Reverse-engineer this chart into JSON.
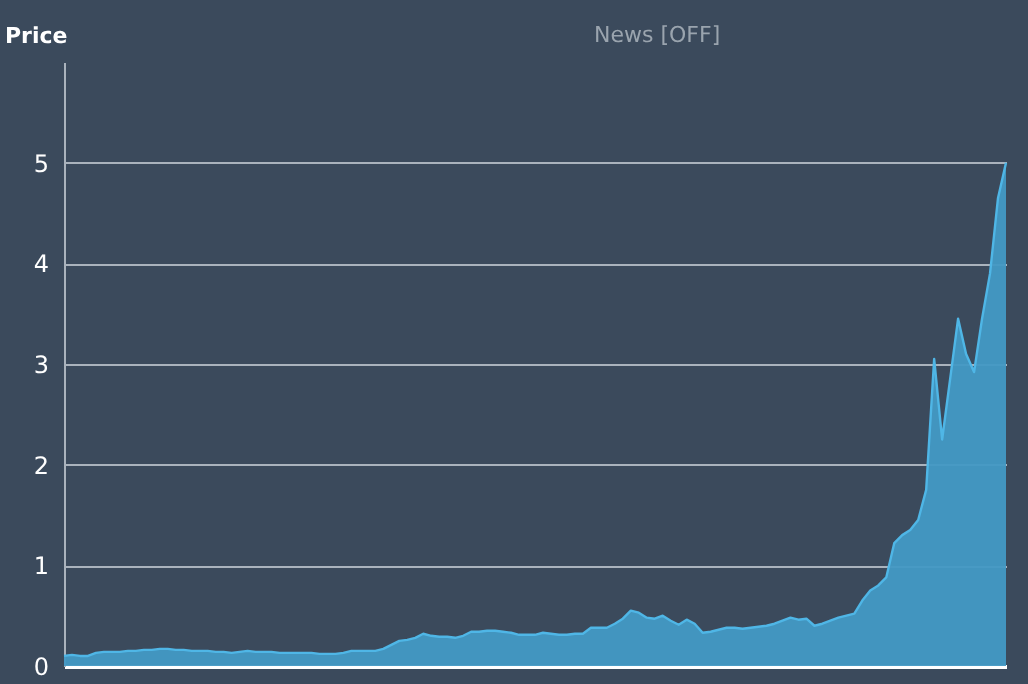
{
  "chart_data": {
    "type": "area",
    "ylabel": "Price",
    "annotations": [
      "News [OFF]"
    ],
    "categories": [
      null,
      null,
      null,
      null,
      null,
      null,
      null,
      null,
      null,
      null,
      null,
      null,
      null,
      null,
      null,
      null,
      null,
      null,
      null,
      null,
      null,
      null,
      null,
      null,
      null,
      null,
      null,
      null,
      null,
      null,
      null,
      null,
      null,
      null,
      null,
      null,
      null,
      null,
      null,
      null,
      null,
      null,
      null,
      null,
      null,
      null,
      null,
      null,
      null,
      null,
      null,
      null,
      null,
      null,
      null,
      null,
      null,
      null,
      null,
      null,
      null,
      null,
      null,
      null,
      null,
      null,
      null,
      null,
      null,
      null,
      null,
      null,
      null,
      null,
      null,
      null,
      null,
      null,
      null,
      null,
      null,
      null,
      null,
      null,
      null,
      null,
      null,
      null,
      null,
      null,
      null,
      null,
      null,
      null,
      null,
      null,
      null,
      null,
      null,
      null,
      null,
      null,
      null,
      null,
      null,
      null,
      null,
      null,
      null,
      null,
      null,
      null,
      null,
      null,
      null,
      null,
      null,
      null,
      null
    ],
    "series": [
      {
        "color": "#4299c4",
        "values": [
          0.1,
          0.11,
          0.1,
          0.1,
          0.13,
          0.14,
          0.14,
          0.14,
          0.15,
          0.15,
          0.16,
          0.16,
          0.17,
          0.17,
          0.16,
          0.16,
          0.15,
          0.15,
          0.15,
          0.14,
          0.14,
          0.13,
          0.14,
          0.15,
          0.14,
          0.14,
          0.14,
          0.13,
          0.13,
          0.13,
          0.13,
          0.13,
          0.12,
          0.12,
          0.12,
          0.13,
          0.15,
          0.15,
          0.15,
          0.15,
          0.17,
          0.21,
          0.25,
          0.26,
          0.28,
          0.32,
          0.3,
          0.29,
          0.29,
          0.28,
          0.3,
          0.34,
          0.34,
          0.35,
          0.35,
          0.34,
          0.33,
          0.31,
          0.31,
          0.31,
          0.33,
          0.32,
          0.31,
          0.31,
          0.32,
          0.32,
          0.38,
          0.38,
          0.38,
          0.42,
          0.47,
          0.55,
          0.53,
          0.48,
          0.47,
          0.5,
          0.45,
          0.41,
          0.46,
          0.42,
          0.33,
          0.34,
          0.36,
          0.38,
          0.38,
          0.37,
          0.38,
          0.39,
          0.4,
          0.42,
          0.45,
          0.48,
          0.46,
          0.47,
          0.4,
          0.42,
          0.45,
          0.48,
          0.5,
          0.52,
          0.65,
          0.75,
          0.8,
          0.88,
          1.22,
          1.3,
          1.35,
          1.45,
          1.75,
          3.05,
          2.25,
          2.85,
          3.45,
          3.1,
          2.92,
          3.45,
          3.9,
          4.65,
          5.0
        ]
      }
    ],
    "ylim": [
      0,
      6
    ],
    "yticks": [
      0,
      1,
      2,
      3,
      4,
      5
    ],
    "grid": "y"
  }
}
